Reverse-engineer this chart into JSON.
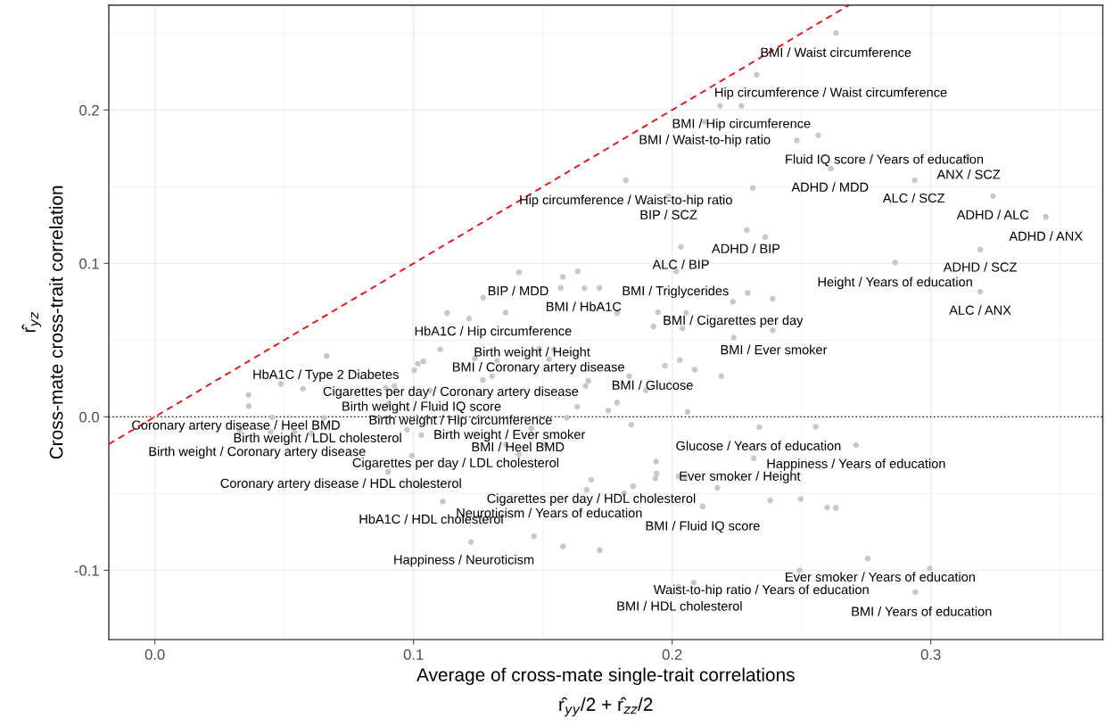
{
  "chart_data": {
    "type": "scatter",
    "xlabel": "Average of cross-mate single-trait correlations\nr̂$_{yy}$/2 + r̂$_{zz}$/2",
    "ylabel": "r̂$_{yz}$\nCross-mate cross-trait correlation",
    "xlim": [
      -0.0178,
      0.3665
    ],
    "ylim": [
      -0.1452,
      0.2684
    ],
    "xticks": [
      {
        "value": 0,
        "label": "0.0"
      },
      {
        "value": 0.1,
        "label": "0.1"
      },
      {
        "value": 0.2,
        "label": "0.2"
      },
      {
        "value": 0.3,
        "label": "0.3"
      }
    ],
    "yticks": [
      {
        "value": -0.1,
        "label": "-0.1"
      },
      {
        "value": 0,
        "label": "0.0"
      },
      {
        "value": 0.1,
        "label": "0.1"
      },
      {
        "value": 0.2,
        "label": "0.2"
      }
    ],
    "grid": true,
    "ref_lines": [
      {
        "axis": "y",
        "value": 0,
        "color": "#000000",
        "line_style": "dotted"
      }
    ],
    "series": [
      {
        "color": "#c8c8c8",
        "marker": "circle",
        "x": [
          0.2633,
          0.2327,
          0.2185,
          0.2268,
          0.2126,
          0.2482,
          0.2565,
          0.2614,
          0.3143,
          0.2938,
          0.324,
          0.3445,
          0.3191,
          0.2862,
          0.3191,
          0.1821,
          0.2312,
          0.1986,
          0.2289,
          0.236,
          0.2034,
          0.2016,
          0.1408,
          0.1577,
          0.1635,
          0.1569,
          0.1661,
          0.1719,
          0.1269,
          0.2292,
          0.2235,
          0.2389,
          0.113,
          0.1215,
          0.1356,
          0.1787,
          0.1945,
          0.2054,
          0.1928,
          0.204,
          0.2389,
          0.2238,
          0.1486,
          0.1543,
          0.1237,
          0.1323,
          0.1524,
          0.203,
          0.1972,
          0.2087,
          0.219,
          0.1304,
          0.1268,
          0.1834,
          0.1676,
          0.1665,
          0.1899,
          0.1787,
          0.1633,
          0.1753,
          0.206,
          0.1593,
          0.1842,
          0.2337,
          0.1455,
          0.1357,
          0.1407,
          0.151,
          0.1938,
          0.194,
          0.1935,
          0.2025,
          0.2049,
          0.2175,
          0.2315,
          0.2379,
          0.1687,
          0.167,
          0.1849,
          0.1814,
          0.2118,
          0.1466,
          0.1578,
          0.172,
          0.1222,
          0.2025,
          0.2083,
          0.2555,
          0.2711,
          0.2497,
          0.2599,
          0.2633,
          0.2756,
          0.2493,
          0.2996,
          0.294,
          0.0664,
          0.1103,
          0.1017,
          0.1038,
          0.1003,
          0.0487,
          0.0573,
          0.0362,
          0.0363,
          0.0892,
          0.0926,
          0.1064,
          0.0903,
          0.0453,
          0.0655,
          0.0327,
          0.0447,
          0.0539,
          0.0605,
          0.0975,
          0.103,
          0.0994,
          0.0902,
          0.1026,
          0.1113
        ],
        "values": [
          0.2502,
          0.223,
          0.2027,
          0.2027,
          0.1922,
          0.1802,
          0.1835,
          0.1618,
          0.1695,
          0.1541,
          0.1438,
          0.1304,
          0.1091,
          0.1006,
          0.0816,
          0.1541,
          0.1492,
          0.1438,
          0.1217,
          0.1172,
          0.1108,
          0.0948,
          0.0942,
          0.0913,
          0.0949,
          0.0841,
          0.0839,
          0.0841,
          0.0777,
          0.0808,
          0.075,
          0.0769,
          0.0676,
          0.064,
          0.068,
          0.0676,
          0.0682,
          0.0678,
          0.0589,
          0.0576,
          0.0564,
          0.0517,
          0.0445,
          0.044,
          0.0381,
          0.0366,
          0.0376,
          0.037,
          0.0333,
          0.0308,
          0.0265,
          0.0265,
          0.024,
          0.0265,
          0.0234,
          0.0201,
          0.0172,
          0.0093,
          0.0066,
          0.0042,
          0.0033,
          -0.0006,
          -0.0052,
          -0.0068,
          -0.0074,
          -0.018,
          -0.0244,
          -0.018,
          -0.0291,
          -0.0369,
          -0.0401,
          -0.0388,
          -0.0388,
          -0.0463,
          -0.027,
          -0.0545,
          -0.0411,
          -0.0475,
          -0.0452,
          -0.0498,
          -0.0584,
          -0.0779,
          -0.0845,
          -0.0869,
          -0.0816,
          -0.1107,
          -0.1081,
          -0.0064,
          -0.0184,
          -0.0535,
          -0.0591,
          -0.0593,
          -0.0923,
          -0.1,
          -0.0988,
          -0.1142,
          0.0397,
          0.044,
          0.0347,
          0.0362,
          0.0304,
          0.0215,
          0.0184,
          0.0143,
          0.007,
          0.0188,
          0.0201,
          0.0172,
          0.0085,
          -0.0004,
          -0.0006,
          -0.009,
          -0.0099,
          -0.0099,
          -0.0109,
          -0.0085,
          -0.0119,
          -0.0254,
          -0.0359,
          -0.0452,
          -0.0552
        ]
      },
      {
        "type": "line",
        "color": "#ff0000",
        "line_style": "dashed",
        "x": [
          -0.0178,
          0.2684
        ],
        "values": [
          -0.0178,
          0.2684
        ]
      }
    ],
    "annotations": [
      {
        "text": "BMI / Waist circumference",
        "x": 0.2633,
        "y": 0.2502
      },
      {
        "text": "Hip circumference / Waist circumference",
        "x": 0.2327,
        "y": 0.223
      },
      {
        "text": "BMI / Hip circumference",
        "x": 0.2185,
        "y": 0.2027
      },
      {
        "text": "BMI / Waist-to-hip ratio",
        "x": 0.2126,
        "y": 0.1922
      },
      {
        "text": "Fluid IQ score / Years of education",
        "x": 0.2565,
        "y": 0.1835
      },
      {
        "text": "ANX / SCZ",
        "x": 0.3143,
        "y": 0.1695
      },
      {
        "text": "ADHD / MDD",
        "x": 0.2614,
        "y": 0.1618
      },
      {
        "text": "ALC / SCZ",
        "x": 0.2938,
        "y": 0.1541
      },
      {
        "text": "Hip circumference / Waist-to-hip ratio",
        "x": 0.1821,
        "y": 0.1541
      },
      {
        "text": "BIP / SCZ",
        "x": 0.1986,
        "y": 0.1438
      },
      {
        "text": "ADHD / ALC",
        "x": 0.324,
        "y": 0.1438
      },
      {
        "text": "ADHD / ANX",
        "x": 0.3445,
        "y": 0.1304
      },
      {
        "text": "ADHD / BIP",
        "x": 0.2289,
        "y": 0.1217
      },
      {
        "text": "ALC / BIP",
        "x": 0.2034,
        "y": 0.1108
      },
      {
        "text": "ADHD / SCZ",
        "x": 0.3191,
        "y": 0.1091
      },
      {
        "text": "BIP / MDD",
        "x": 0.1408,
        "y": 0.0942
      },
      {
        "text": "BMI / Triglycerides",
        "x": 0.2016,
        "y": 0.0948
      },
      {
        "text": "Height / Years of education",
        "x": 0.2862,
        "y": 0.1006
      },
      {
        "text": "BMI / HbA1C",
        "x": 0.1661,
        "y": 0.0839
      },
      {
        "text": "ALC / ANX",
        "x": 0.3191,
        "y": 0.0816
      },
      {
        "text": "BMI / Cigarettes per day",
        "x": 0.2235,
        "y": 0.075
      },
      {
        "text": "HbA1C / Hip circumference",
        "x": 0.1356,
        "y": 0.068
      },
      {
        "text": "BMI / Ever smoker",
        "x": 0.2389,
        "y": 0.0564
      },
      {
        "text": "Birth weight / Height",
        "x": 0.1486,
        "y": 0.0445
      },
      {
        "text": "BMI / Coronary artery disease",
        "x": 0.1524,
        "y": 0.0376
      },
      {
        "text": "HbA1C / Type 2 Diabetes",
        "x": 0.0664,
        "y": 0.0397
      },
      {
        "text": "BMI / Glucose",
        "x": 0.1972,
        "y": 0.0333
      },
      {
        "text": "Cigarettes per day / Coronary artery disease",
        "x": 0.1268,
        "y": 0.024
      },
      {
        "text": "Birth weight / Fluid IQ score",
        "x": 0.0903,
        "y": 0.0085
      },
      {
        "text": "Birth weight / Hip circumference",
        "x": 0.0975,
        "y": -0.0085
      },
      {
        "text": "Coronary artery disease / Heel BMD",
        "x": 0.0327,
        "y": -0.009
      },
      {
        "text": "Birth weight / LDL cholesterol",
        "x": 0.0605,
        "y": -0.0109
      },
      {
        "text": "Birth weight / Ever smoker",
        "x": 0.1357,
        "y": -0.018
      },
      {
        "text": "Birth weight / Coronary artery disease",
        "x": 0.0447,
        "y": -0.0099
      },
      {
        "text": "BMI / Heel BMD",
        "x": 0.1407,
        "y": -0.0244
      },
      {
        "text": "Cigarettes per day / LDL cholesterol",
        "x": 0.0994,
        "y": -0.0254
      },
      {
        "text": "Glucose / Years of education",
        "x": 0.2337,
        "y": -0.0068
      },
      {
        "text": "Happiness / Years of education",
        "x": 0.2711,
        "y": -0.0184
      },
      {
        "text": "Coronary artery disease / HDL cholesterol",
        "x": 0.0902,
        "y": -0.0359
      },
      {
        "text": "Ever smoker / Height",
        "x": 0.2175,
        "y": -0.0463
      },
      {
        "text": "Cigarettes per day / HDL cholesterol",
        "x": 0.167,
        "y": -0.0475
      },
      {
        "text": "Neuroticism / Years of education",
        "x": 0.1466,
        "y": -0.0779
      },
      {
        "text": "HbA1C / HDL cholesterol",
        "x": 0.1113,
        "y": -0.0552
      },
      {
        "text": "BMI / Fluid IQ score",
        "x": 0.2118,
        "y": -0.0584
      },
      {
        "text": "Happiness / Neuroticism",
        "x": 0.1222,
        "y": -0.0816
      },
      {
        "text": "Ever smoker / Years of education",
        "x": 0.2756,
        "y": -0.0923
      },
      {
        "text": "Waist-to-hip ratio / Years of education",
        "x": 0.2083,
        "y": -0.1081
      },
      {
        "text": "BMI / HDL cholesterol",
        "x": 0.2025,
        "y": -0.1107
      },
      {
        "text": "BMI / Years of education",
        "x": 0.294,
        "y": -0.1142
      }
    ]
  }
}
